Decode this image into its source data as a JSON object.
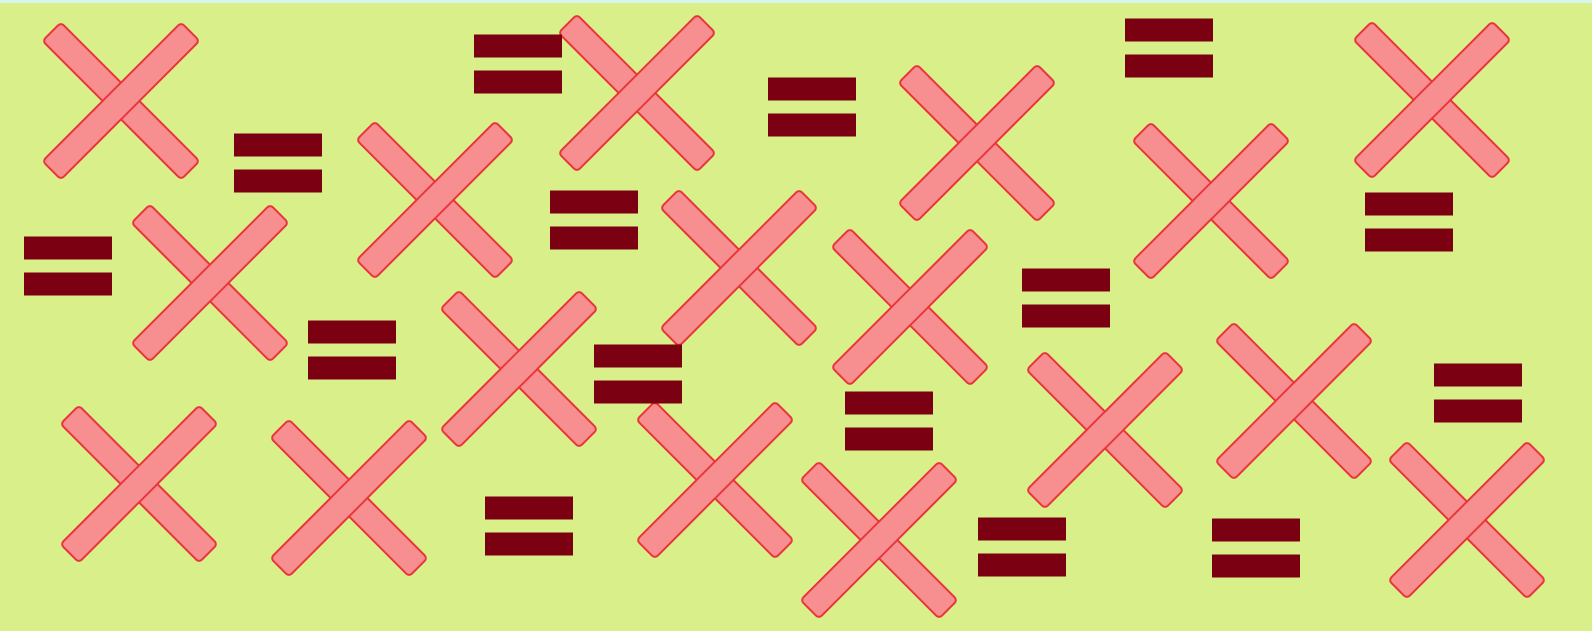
{
  "colors": {
    "background": "#d9f08a",
    "top_strip": "#d9f6ee",
    "cross_fill": "#f78f90",
    "cross_stroke": "#e8343a",
    "equals_fill": "#7b0012"
  },
  "symbols": {
    "cross": "x-mark",
    "equals": "equals-sign"
  }
}
